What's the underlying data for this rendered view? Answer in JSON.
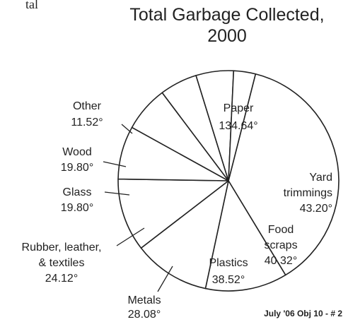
{
  "page": {
    "cut_off_text": "tal",
    "footer": "July '06  Obj 10 - # 2"
  },
  "chart_data": {
    "type": "pie",
    "title": "Total Garbage Collected, 2000",
    "title_lines": [
      "Total Garbage Collected,",
      "2000"
    ],
    "unit": "degrees",
    "slices": [
      {
        "name": "Paper",
        "value": 134.64,
        "value_label": "134.64°",
        "label_lines": [
          "Paper",
          "134.64°"
        ]
      },
      {
        "name": "Yard trimmings",
        "value": 43.2,
        "value_label": "43.20°",
        "label_lines": [
          "Yard",
          "trimmings",
          "43.20°"
        ]
      },
      {
        "name": "Food scraps",
        "value": 40.32,
        "value_label": "40.32°",
        "label_lines": [
          "Food",
          "scraps",
          "40.32°"
        ]
      },
      {
        "name": "Plastics",
        "value": 38.52,
        "value_label": "38.52°",
        "label_lines": [
          "Plastics",
          "38.52°"
        ]
      },
      {
        "name": "Metals",
        "value": 28.08,
        "value_label": "28.08°",
        "label_lines": [
          "Metals",
          "28.08°"
        ]
      },
      {
        "name": "Rubber, leather, & textiles",
        "value": 24.12,
        "value_label": "24.12°",
        "label_lines": [
          "Rubber, leather,",
          "& textiles",
          "24.12°"
        ]
      },
      {
        "name": "Glass",
        "value": 19.8,
        "value_label": "19.80°",
        "label_lines": [
          "Glass",
          "19.80°"
        ]
      },
      {
        "name": "Wood",
        "value": 19.8,
        "value_label": "19.80°",
        "label_lines": [
          "Wood",
          "19.80°"
        ]
      },
      {
        "name": "Other",
        "value": 11.52,
        "value_label": "11.52°",
        "label_lines": [
          "Other",
          "11.52°"
        ]
      }
    ]
  }
}
